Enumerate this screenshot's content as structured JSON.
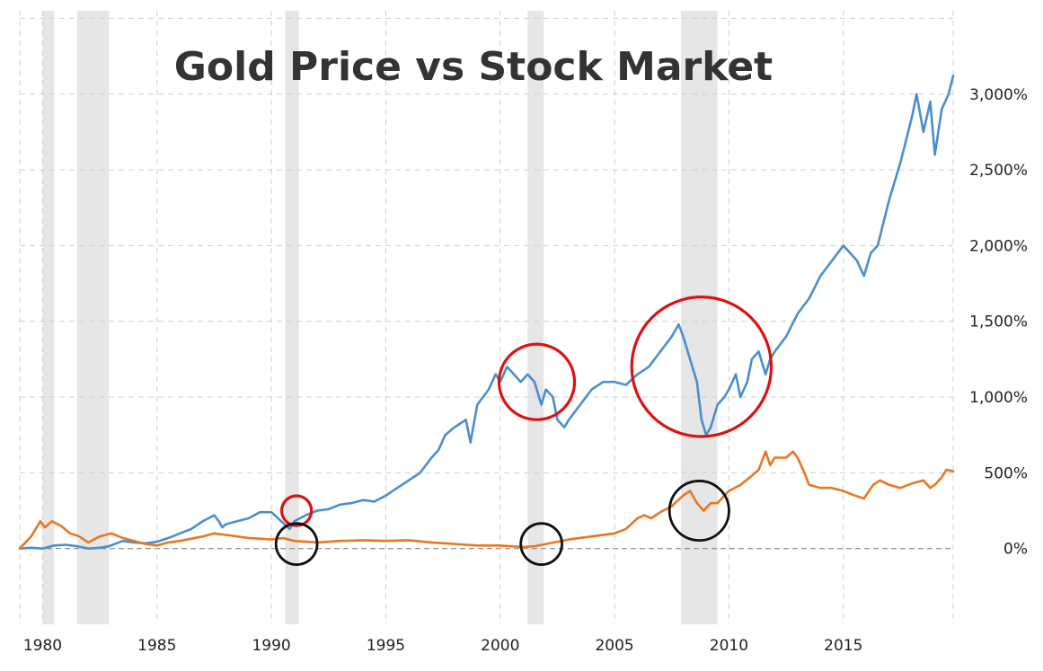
{
  "chart_data": {
    "type": "line",
    "title": "Gold Price vs Stock Market",
    "xlabel": "",
    "ylabel": "",
    "xlim": [
      1979.0,
      2019.8
    ],
    "ylim": [
      -500,
      3550
    ],
    "x_ticks": [
      1980,
      1985,
      1990,
      1995,
      2000,
      2005,
      2010,
      2015
    ],
    "x_tick_labels": [
      "1980",
      "1985",
      "1990",
      "1995",
      "2000",
      "2005",
      "2010",
      "2015"
    ],
    "y_ticks": [
      0,
      500,
      1000,
      1500,
      2000,
      2500,
      3000
    ],
    "y_tick_labels": [
      "0%",
      "500%",
      "1,000%",
      "1,500%",
      "2,000%",
      "2,500%",
      "3,000%"
    ],
    "y_gridlines": [
      0,
      500,
      1000,
      1500,
      2000,
      2500,
      3000,
      3500
    ],
    "x_gridlines": [
      1979,
      1980,
      1985,
      1990,
      1995,
      2000,
      2005,
      2010,
      2015,
      2019.8
    ],
    "legend": "none",
    "recessions": [
      [
        1980.0,
        1980.5
      ],
      [
        1981.5,
        1982.9
      ],
      [
        1990.6,
        1991.2
      ],
      [
        2001.2,
        2001.9
      ],
      [
        2007.9,
        2009.5
      ]
    ],
    "series": [
      {
        "name": "Stock Market",
        "color": "#4a8fcc",
        "x": [
          1979.0,
          1979.5,
          1980.0,
          1980.5,
          1981.0,
          1981.5,
          1982.0,
          1982.5,
          1982.9,
          1983.5,
          1984.0,
          1984.5,
          1985.0,
          1985.5,
          1986.0,
          1986.5,
          1987.0,
          1987.5,
          1987.7,
          1987.85,
          1988.0,
          1988.5,
          1989.0,
          1989.5,
          1990.0,
          1990.5,
          1990.8,
          1991.0,
          1991.5,
          1992.0,
          1992.5,
          1993.0,
          1993.5,
          1994.0,
          1994.5,
          1995.0,
          1995.5,
          1996.0,
          1996.5,
          1997.0,
          1997.3,
          1997.6,
          1998.0,
          1998.5,
          1998.7,
          1999.0,
          1999.5,
          1999.8,
          2000.0,
          2000.3,
          2000.6,
          2000.9,
          2001.2,
          2001.5,
          2001.8,
          2002.0,
          2002.3,
          2002.5,
          2002.8,
          2003.0,
          2003.5,
          2004.0,
          2004.5,
          2005.0,
          2005.5,
          2006.0,
          2006.5,
          2007.0,
          2007.5,
          2007.8,
          2008.0,
          2008.3,
          2008.6,
          2008.8,
          2009.0,
          2009.2,
          2009.5,
          2009.8,
          2010.0,
          2010.3,
          2010.5,
          2010.8,
          2011.0,
          2011.3,
          2011.6,
          2011.8,
          2012.0,
          2012.5,
          2013.0,
          2013.5,
          2014.0,
          2014.5,
          2015.0,
          2015.3,
          2015.6,
          2015.9,
          2016.2,
          2016.5,
          2017.0,
          2017.5,
          2018.0,
          2018.2,
          2018.5,
          2018.8,
          2019.0,
          2019.3,
          2019.6,
          2019.8
        ],
        "values": [
          0,
          5,
          0,
          20,
          25,
          15,
          0,
          5,
          15,
          50,
          40,
          35,
          45,
          70,
          100,
          130,
          180,
          220,
          180,
          140,
          160,
          180,
          200,
          240,
          240,
          170,
          130,
          180,
          220,
          250,
          260,
          290,
          300,
          320,
          310,
          350,
          400,
          450,
          500,
          600,
          650,
          750,
          800,
          850,
          700,
          950,
          1050,
          1150,
          1100,
          1200,
          1150,
          1100,
          1150,
          1100,
          950,
          1050,
          1000,
          850,
          800,
          850,
          950,
          1050,
          1100,
          1100,
          1080,
          1150,
          1200,
          1300,
          1400,
          1480,
          1400,
          1250,
          1100,
          850,
          750,
          800,
          950,
          1000,
          1050,
          1150,
          1000,
          1100,
          1250,
          1300,
          1150,
          1250,
          1300,
          1400,
          1550,
          1650,
          1800,
          1900,
          2000,
          1950,
          1900,
          1800,
          1950,
          2000,
          2300,
          2550,
          2850,
          3000,
          2750,
          2950,
          2600,
          2900,
          3000,
          3120
        ]
      },
      {
        "name": "Gold Price",
        "color": "#e87722",
        "x": [
          1979.0,
          1979.5,
          1979.9,
          1980.1,
          1980.4,
          1980.8,
          1981.2,
          1981.6,
          1982.0,
          1982.5,
          1983.0,
          1983.5,
          1984.0,
          1984.5,
          1985.0,
          1985.5,
          1986.0,
          1987.0,
          1987.5,
          1988.0,
          1989.0,
          1990.0,
          1990.5,
          1991.0,
          1992.0,
          1993.0,
          1994.0,
          1995.0,
          1996.0,
          1997.0,
          1998.0,
          1999.0,
          1999.5,
          2000.0,
          2001.0,
          2001.5,
          2002.0,
          2003.0,
          2004.0,
          2005.0,
          2005.5,
          2006.0,
          2006.3,
          2006.6,
          2007.0,
          2007.5,
          2008.0,
          2008.3,
          2008.6,
          2008.9,
          2009.2,
          2009.5,
          2009.8,
          2010.0,
          2010.5,
          2011.0,
          2011.3,
          2011.6,
          2011.8,
          2012.0,
          2012.5,
          2012.8,
          2013.0,
          2013.3,
          2013.5,
          2014.0,
          2014.5,
          2015.0,
          2015.5,
          2015.9,
          2016.3,
          2016.6,
          2017.0,
          2017.5,
          2018.0,
          2018.5,
          2018.8,
          2019.0,
          2019.3,
          2019.5,
          2019.8
        ],
        "values": [
          0,
          80,
          180,
          140,
          180,
          150,
          100,
          80,
          40,
          80,
          100,
          70,
          50,
          30,
          20,
          40,
          50,
          80,
          100,
          90,
          70,
          60,
          70,
          50,
          40,
          50,
          55,
          50,
          55,
          40,
          30,
          20,
          20,
          20,
          10,
          15,
          30,
          60,
          80,
          100,
          130,
          200,
          220,
          200,
          240,
          280,
          350,
          380,
          300,
          250,
          300,
          300,
          350,
          380,
          420,
          480,
          520,
          640,
          550,
          600,
          600,
          640,
          600,
          500,
          420,
          400,
          400,
          380,
          350,
          330,
          420,
          450,
          420,
          400,
          430,
          450,
          400,
          420,
          470,
          520,
          510
        ]
      }
    ],
    "annotations": [
      {
        "shape": "circle",
        "color": "#dd1111",
        "x": 1991.1,
        "y": 250,
        "r_years": 0.65
      },
      {
        "shape": "circle",
        "color": "#dd1111",
        "x": 2001.6,
        "y": 1100,
        "r_years": 1.65
      },
      {
        "shape": "circle",
        "color": "#dd1111",
        "x": 2008.8,
        "y": 1200,
        "r_years": 3.05
      },
      {
        "shape": "circle",
        "color": "#111111",
        "x": 1991.1,
        "y": 30,
        "r_years": 0.9
      },
      {
        "shape": "circle",
        "color": "#111111",
        "x": 2001.8,
        "y": 30,
        "r_years": 0.9
      },
      {
        "shape": "circle",
        "color": "#111111",
        "x": 2008.7,
        "y": 250,
        "r_years": 1.3
      }
    ]
  }
}
